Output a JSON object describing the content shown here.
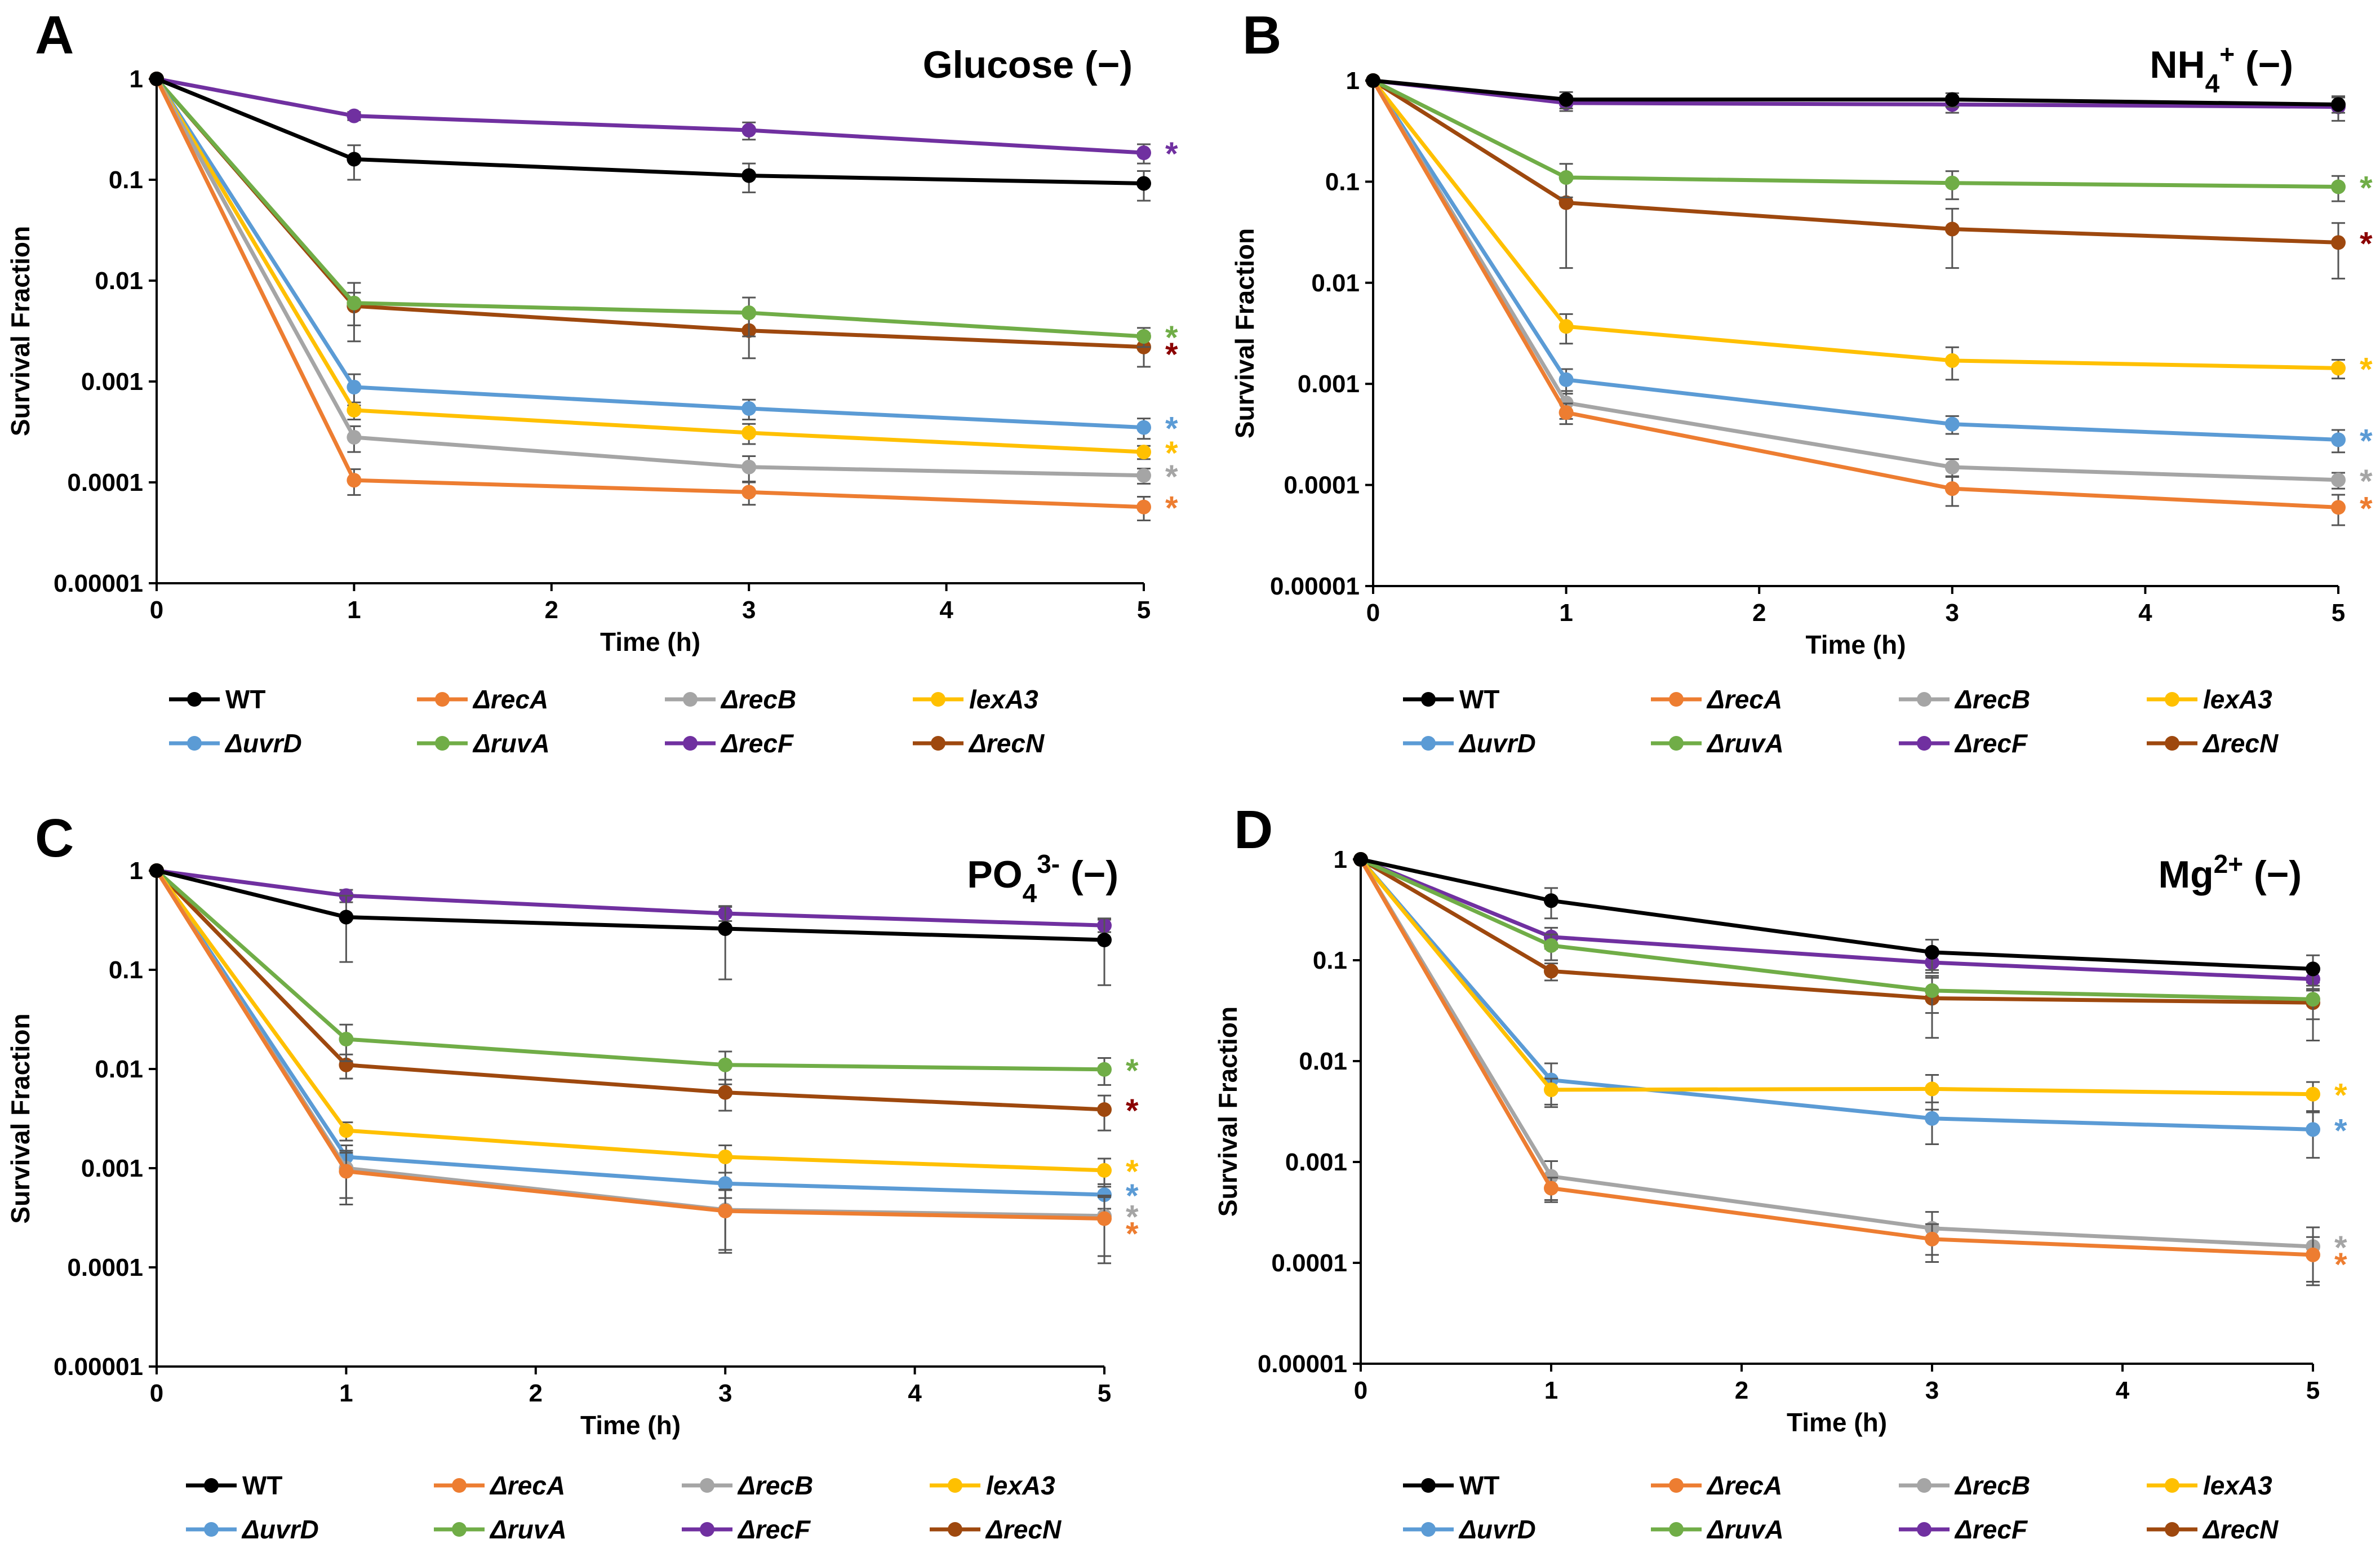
{
  "colors": {
    "WT": "#000000",
    "recA": "#ed7d31",
    "recB": "#a5a5a5",
    "lexA3": "#ffc000",
    "uvrD": "#5b9bd5",
    "ruvA": "#70ad47",
    "recF": "#7030a0",
    "recN": "#9e480e",
    "axis": "#000000",
    "errorbar": "#555555",
    "starRecN": "#8b0000"
  },
  "legend": [
    {
      "key": "WT",
      "label": "WT",
      "italic": false
    },
    {
      "key": "recA",
      "label": "ΔrecA",
      "italic": true
    },
    {
      "key": "recB",
      "label": "ΔrecB",
      "italic": true
    },
    {
      "key": "lexA3",
      "label": "lexA3",
      "italic": true
    },
    {
      "key": "uvrD",
      "label": "ΔuvrD",
      "italic": true
    },
    {
      "key": "ruvA",
      "label": "ΔruvA",
      "italic": true
    },
    {
      "key": "recF",
      "label": "ΔrecF",
      "italic": true
    },
    {
      "key": "recN",
      "label": "ΔrecN",
      "italic": true
    }
  ],
  "chart_data": [
    {
      "panel": "A",
      "type": "line",
      "title": "Glucose (−)",
      "title_parts": [
        {
          "t": "Glucose (−)",
          "s": "n"
        }
      ],
      "xlabel": "Time (h)",
      "ylabel": "Survival Fraction",
      "x_ticks": [
        "0",
        "1",
        "2",
        "3",
        "4",
        "5"
      ],
      "y_ticks": [
        "1",
        "0.1",
        "0.01",
        "0.001",
        "0.0001",
        "0.00001"
      ],
      "xlim": [
        0,
        5
      ],
      "ylim": [
        1e-05,
        1
      ],
      "yscale": "log",
      "x": [
        0,
        1,
        3,
        5
      ],
      "series": [
        {
          "key": "WT",
          "name": "WT",
          "values": [
            1,
            0.16,
            0.11,
            0.092
          ],
          "err": [
            0,
            0.06,
            0.035,
            0.03
          ],
          "star": ""
        },
        {
          "key": "recA",
          "name": "ΔrecA",
          "values": [
            1,
            0.000105,
            8e-05,
            5.7e-05
          ],
          "err": [
            0,
            3e-05,
            2e-05,
            1.5e-05
          ],
          "star": "*"
        },
        {
          "key": "recB",
          "name": "ΔrecB",
          "values": [
            1,
            0.00028,
            0.000142,
            0.000117
          ],
          "err": [
            0,
            8e-05,
            4e-05,
            2e-05
          ],
          "star": "*"
        },
        {
          "key": "lexA3",
          "name": "lexA3",
          "values": [
            1,
            0.00052,
            0.00031,
            0.0002
          ],
          "err": [
            0,
            0.0001,
            7e-05,
            3e-05
          ],
          "star": "*"
        },
        {
          "key": "uvrD",
          "name": "ΔuvrD",
          "values": [
            1,
            0.00088,
            0.00054,
            0.00035
          ],
          "err": [
            0,
            0.0003,
            0.00012,
            8e-05
          ],
          "star": "*"
        },
        {
          "key": "ruvA",
          "name": "ΔruvA",
          "values": [
            1,
            0.006,
            0.0048,
            0.0028
          ],
          "err": [
            0,
            0.0035,
            0.002,
            0.0006
          ],
          "star": "*"
        },
        {
          "key": "recF",
          "name": "ΔrecF",
          "values": [
            1,
            0.43,
            0.31,
            0.185
          ],
          "err": [
            0,
            0.04,
            0.06,
            0.04
          ],
          "star": "*"
        },
        {
          "key": "recN",
          "name": "ΔrecN",
          "values": [
            1,
            0.0056,
            0.0032,
            0.0022
          ],
          "err": [
            0,
            0.002,
            0.0015,
            0.0008
          ],
          "star": "*"
        }
      ]
    },
    {
      "panel": "B",
      "type": "line",
      "title": "NH4+ (−)",
      "title_parts": [
        {
          "t": "NH",
          "s": "n"
        },
        {
          "t": "4",
          "s": "sub"
        },
        {
          "t": "+",
          "s": "sup"
        },
        {
          "t": " (−)",
          "s": "n"
        }
      ],
      "xlabel": "Time (h)",
      "ylabel": "Survival Fraction",
      "x_ticks": [
        "0",
        "1",
        "2",
        "3",
        "4",
        "5"
      ],
      "y_ticks": [
        "1",
        "0.1",
        "0.01",
        "0.001",
        "0.0001",
        "0.00001"
      ],
      "xlim": [
        0,
        5
      ],
      "ylim": [
        1e-05,
        1
      ],
      "yscale": "log",
      "x": [
        0,
        1,
        3,
        5
      ],
      "series": [
        {
          "key": "WT",
          "name": "WT",
          "values": [
            1,
            0.65,
            0.65,
            0.58
          ],
          "err": [
            0,
            0.12,
            0.1,
            0.1
          ],
          "star": ""
        },
        {
          "key": "recA",
          "name": "ΔrecA",
          "values": [
            1,
            0.00052,
            9.2e-05,
            6e-05
          ],
          "err": [
            0,
            0.00012,
            3e-05,
            2e-05
          ],
          "star": "*"
        },
        {
          "key": "recB",
          "name": "ΔrecB",
          "values": [
            1,
            0.00065,
            0.00015,
            0.000112
          ],
          "err": [
            0,
            0.0002,
            3e-05,
            2e-05
          ],
          "star": "*"
        },
        {
          "key": "lexA3",
          "name": "lexA3",
          "values": [
            1,
            0.0037,
            0.0017,
            0.00143
          ],
          "err": [
            0,
            0.0012,
            0.0006,
            0.0003
          ],
          "star": "*"
        },
        {
          "key": "uvrD",
          "name": "ΔuvrD",
          "values": [
            1,
            0.0011,
            0.0004,
            0.00028
          ],
          "err": [
            0,
            0.0003,
            8e-05,
            7e-05
          ],
          "star": "*"
        },
        {
          "key": "ruvA",
          "name": "ΔruvA",
          "values": [
            1,
            0.11,
            0.097,
            0.089
          ],
          "err": [
            0,
            0.04,
            0.03,
            0.025
          ],
          "star": "*"
        },
        {
          "key": "recF",
          "name": "ΔrecF",
          "values": [
            1,
            0.6,
            0.58,
            0.55
          ],
          "err": [
            0,
            0.1,
            0.1,
            0.15
          ],
          "star": ""
        },
        {
          "key": "recN",
          "name": "ΔrecN",
          "values": [
            1,
            0.062,
            0.034,
            0.025
          ],
          "err": [
            0,
            0.048,
            0.02,
            0.014
          ],
          "star": "*"
        }
      ]
    },
    {
      "panel": "C",
      "type": "line",
      "title": "PO43- (−)",
      "title_parts": [
        {
          "t": "PO",
          "s": "n"
        },
        {
          "t": "4",
          "s": "sub"
        },
        {
          "t": "3-",
          "s": "sup"
        },
        {
          "t": " (−)",
          "s": "n"
        }
      ],
      "xlabel": "Time (h)",
      "ylabel": "Survival Fraction",
      "x_ticks": [
        "0",
        "1",
        "2",
        "3",
        "4",
        "5"
      ],
      "y_ticks": [
        "1",
        "0.1",
        "0.01",
        "0.001",
        "0.0001",
        "0.00001"
      ],
      "xlim": [
        0,
        5
      ],
      "ylim": [
        1e-05,
        1
      ],
      "yscale": "log",
      "x": [
        0,
        1,
        3,
        5
      ],
      "series": [
        {
          "key": "WT",
          "name": "WT",
          "values": [
            1,
            0.34,
            0.26,
            0.2
          ],
          "err": [
            0,
            0.22,
            0.18,
            0.13
          ],
          "star": ""
        },
        {
          "key": "recA",
          "name": "ΔrecA",
          "values": [
            1,
            0.00093,
            0.00037,
            0.00031
          ],
          "err": [
            0,
            0.0005,
            0.00023,
            0.0002
          ],
          "star": "*"
        },
        {
          "key": "recB",
          "name": "ΔrecB",
          "values": [
            1,
            0.001,
            0.00038,
            0.00033
          ],
          "err": [
            0,
            0.0005,
            0.00023,
            0.0002
          ],
          "star": "*"
        },
        {
          "key": "lexA3",
          "name": "lexA3",
          "values": [
            1,
            0.0024,
            0.0013,
            0.00095
          ],
          "err": [
            0,
            0.0005,
            0.0004,
            0.0003
          ],
          "star": "*"
        },
        {
          "key": "uvrD",
          "name": "ΔuvrD",
          "values": [
            1,
            0.0013,
            0.0007,
            0.00054
          ],
          "err": [
            0,
            0.0004,
            0.0002,
            0.00015
          ],
          "star": "*"
        },
        {
          "key": "ruvA",
          "name": "ΔruvA",
          "values": [
            1,
            0.02,
            0.011,
            0.0099
          ],
          "err": [
            0,
            0.008,
            0.004,
            0.003
          ],
          "star": "*"
        },
        {
          "key": "recF",
          "name": "ΔrecF",
          "values": [
            1,
            0.56,
            0.37,
            0.28
          ],
          "err": [
            0,
            0.08,
            0.06,
            0.04
          ],
          "star": ""
        },
        {
          "key": "recN",
          "name": "ΔrecN",
          "values": [
            1,
            0.011,
            0.0058,
            0.0039
          ],
          "err": [
            0,
            0.003,
            0.002,
            0.0015
          ],
          "star": "*"
        }
      ]
    },
    {
      "panel": "D",
      "type": "line",
      "title": "Mg2+ (−)",
      "title_parts": [
        {
          "t": "Mg",
          "s": "n"
        },
        {
          "t": "2+",
          "s": "sup"
        },
        {
          "t": " (−)",
          "s": "n"
        }
      ],
      "xlabel": "Time (h)",
      "ylabel": "Survival Fraction",
      "x_ticks": [
        "0",
        "1",
        "2",
        "3",
        "4",
        "5"
      ],
      "y_ticks": [
        "1",
        "0.1",
        "0.01",
        "0.001",
        "0.0001",
        "0.00001"
      ],
      "xlim": [
        0,
        5
      ],
      "ylim": [
        1e-05,
        1
      ],
      "yscale": "log",
      "x": [
        0,
        1,
        3,
        5
      ],
      "series": [
        {
          "key": "WT",
          "name": "WT",
          "values": [
            1,
            0.39,
            0.12,
            0.082
          ],
          "err": [
            0,
            0.13,
            0.04,
            0.03
          ],
          "star": ""
        },
        {
          "key": "recA",
          "name": "ΔrecA",
          "values": [
            1,
            0.00055,
            0.000172,
            0.00012
          ],
          "err": [
            0,
            0.00015,
            7e-05,
            6e-05
          ],
          "star": "*"
        },
        {
          "key": "recB",
          "name": "ΔrecB",
          "values": [
            1,
            0.00072,
            0.00022,
            0.000145
          ],
          "err": [
            0,
            0.0003,
            0.0001,
            8e-05
          ],
          "star": "*"
        },
        {
          "key": "lexA3",
          "name": "lexA3",
          "values": [
            1,
            0.0052,
            0.0053,
            0.0047
          ],
          "err": [
            0,
            0.0015,
            0.002,
            0.0015
          ],
          "star": "*"
        },
        {
          "key": "uvrD",
          "name": "ΔuvrD",
          "values": [
            1,
            0.0065,
            0.0027,
            0.0021
          ],
          "err": [
            0,
            0.003,
            0.0012,
            0.001
          ],
          "star": "*"
        },
        {
          "key": "ruvA",
          "name": "ΔruvA",
          "values": [
            1,
            0.14,
            0.05,
            0.041
          ],
          "err": [
            0,
            0.04,
            0.02,
            0.015
          ],
          "star": ""
        },
        {
          "key": "recF",
          "name": "ΔrecF",
          "values": [
            1,
            0.17,
            0.095,
            0.065
          ],
          "err": [
            0,
            0.04,
            0.02,
            0.015
          ],
          "star": ""
        },
        {
          "key": "recN",
          "name": "ΔrecN",
          "values": [
            1,
            0.078,
            0.042,
            0.038
          ],
          "err": [
            0,
            0.015,
            0.025,
            0.022
          ],
          "star": ""
        }
      ]
    }
  ]
}
